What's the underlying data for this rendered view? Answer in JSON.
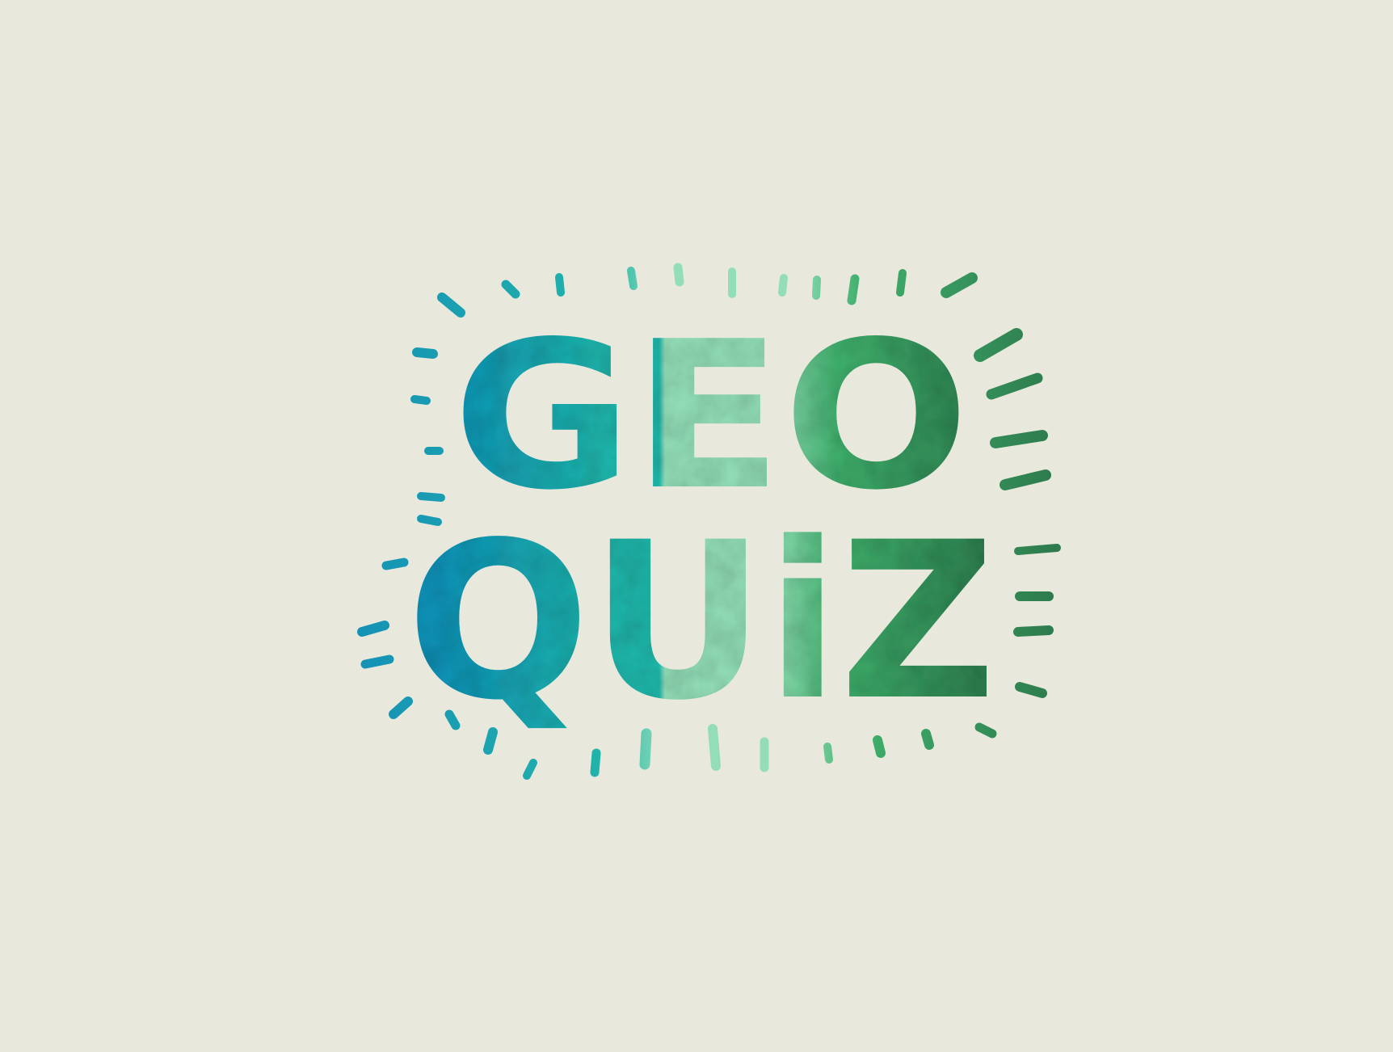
{
  "logo": {
    "line1": "GEO",
    "line2": "QUiZ",
    "colors": {
      "background": "#e9e8dd",
      "blue": "#1591b6",
      "teal": "#21b4aa",
      "mint": "#93ddb8",
      "green": "#3faf6c",
      "dark_green": "#2d7a4c"
    }
  }
}
